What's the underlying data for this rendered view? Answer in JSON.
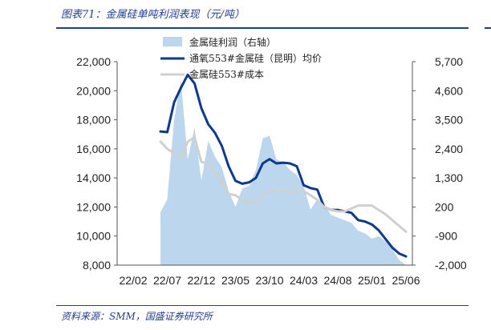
{
  "header": {
    "title": "图表71：金属硅单吨利润表现（元/吨）"
  },
  "footer": {
    "source": "资料来源：SMM，国盛证券研究所"
  },
  "chart_data": {
    "type": "line",
    "x_tick_labels": [
      "22/02",
      "22/07",
      "22/12",
      "23/05",
      "23/10",
      "24/03",
      "24/08",
      "25/01",
      "25/06"
    ],
    "y_left": {
      "ticks": [
        "22,000",
        "20,000",
        "18,000",
        "16,000",
        "14,000",
        "12,000",
        "10,000",
        "8,000"
      ],
      "range": [
        8000,
        22000
      ]
    },
    "y_right": {
      "ticks": [
        "5,700",
        "4,600",
        "3,500",
        "2,400",
        "1,300",
        "200",
        "-900",
        "-2,000"
      ],
      "range": [
        -2000,
        5700
      ]
    },
    "grid": false,
    "legend_position": "top-center",
    "series": [
      {
        "name": "金属硅利润（右轴）",
        "type": "area",
        "axis": "right",
        "color": "#bcd6ee",
        "points": [
          [
            "22/06",
            0
          ],
          [
            "22/07",
            500
          ],
          [
            "22/08",
            3500
          ],
          [
            "22/09",
            5000
          ],
          [
            "22/10",
            2000
          ],
          [
            "22/11",
            3200
          ],
          [
            "22/12",
            1200
          ],
          [
            "23/01",
            2700
          ],
          [
            "23/02",
            2100
          ],
          [
            "23/03",
            1700
          ],
          [
            "23/04",
            800
          ],
          [
            "23/05",
            200
          ],
          [
            "23/06",
            900
          ],
          [
            "23/07",
            1000
          ],
          [
            "23/08",
            1600
          ],
          [
            "23/09",
            2800
          ],
          [
            "23/10",
            2900
          ],
          [
            "23/11",
            2000
          ],
          [
            "23/12",
            1900
          ],
          [
            "24/01",
            1600
          ],
          [
            "24/02",
            1400
          ],
          [
            "24/03",
            1000
          ],
          [
            "24/04",
            100
          ],
          [
            "24/05",
            500
          ],
          [
            "24/06",
            300
          ],
          [
            "24/07",
            -100
          ],
          [
            "24/08",
            -200
          ],
          [
            "24/09",
            -300
          ],
          [
            "24/10",
            -400
          ],
          [
            "24/11",
            -700
          ],
          [
            "24/12",
            -800
          ],
          [
            "25/01",
            -1000
          ],
          [
            "25/02",
            -900
          ],
          [
            "25/03",
            -1100
          ],
          [
            "25/04",
            -1400
          ],
          [
            "25/05",
            -1800
          ],
          [
            "25/06",
            -2000
          ]
        ]
      },
      {
        "name": "通氧553#金属硅（昆明）均价",
        "type": "line",
        "axis": "left",
        "color": "#0d3a8c",
        "points": [
          [
            "22/06",
            17200
          ],
          [
            "22/07",
            17150
          ],
          [
            "22/08",
            19200
          ],
          [
            "22/09",
            20200
          ],
          [
            "22/10",
            21100
          ],
          [
            "22/11",
            20500
          ],
          [
            "22/12",
            18800
          ],
          [
            "23/01",
            17700
          ],
          [
            "23/02",
            17100
          ],
          [
            "23/03",
            16200
          ],
          [
            "23/04",
            14800
          ],
          [
            "23/05",
            13800
          ],
          [
            "23/06",
            13600
          ],
          [
            "23/07",
            13700
          ],
          [
            "23/08",
            14000
          ],
          [
            "23/09",
            15000
          ],
          [
            "23/10",
            15300
          ],
          [
            "23/11",
            15000
          ],
          [
            "23/12",
            15050
          ],
          [
            "24/01",
            15000
          ],
          [
            "24/02",
            14800
          ],
          [
            "24/03",
            13500
          ],
          [
            "24/04",
            13300
          ],
          [
            "24/05",
            13200
          ],
          [
            "24/06",
            12000
          ],
          [
            "24/07",
            11800
          ],
          [
            "24/08",
            11800
          ],
          [
            "24/09",
            11700
          ],
          [
            "24/10",
            11600
          ],
          [
            "24/11",
            11100
          ],
          [
            "24/12",
            11000
          ],
          [
            "25/01",
            10800
          ],
          [
            "25/02",
            10400
          ],
          [
            "25/03",
            9800
          ],
          [
            "25/04",
            9200
          ],
          [
            "25/05",
            8800
          ],
          [
            "25/06",
            8600
          ]
        ]
      },
      {
        "name": "金属硅553#成本",
        "type": "line",
        "axis": "left",
        "color": "#d0d0d0",
        "points": [
          [
            "22/06",
            16500
          ],
          [
            "22/07",
            16000
          ],
          [
            "22/08",
            15700
          ],
          [
            "22/09",
            15400
          ],
          [
            "22/10",
            16500
          ],
          [
            "22/11",
            16800
          ],
          [
            "22/12",
            15100
          ],
          [
            "23/01",
            15000
          ],
          [
            "23/02",
            14400
          ],
          [
            "23/03",
            13700
          ],
          [
            "23/04",
            12900
          ],
          [
            "23/05",
            12800
          ],
          [
            "23/06",
            12500
          ],
          [
            "23/07",
            12350
          ],
          [
            "23/08",
            12400
          ],
          [
            "23/09",
            12800
          ],
          [
            "23/10",
            13100
          ],
          [
            "23/11",
            13200
          ],
          [
            "23/12",
            13200
          ],
          [
            "24/01",
            13000
          ],
          [
            "24/02",
            13100
          ],
          [
            "24/03",
            13100
          ],
          [
            "24/04",
            12800
          ],
          [
            "24/05",
            12500
          ],
          [
            "24/06",
            12000
          ],
          [
            "24/07",
            11800
          ],
          [
            "24/08",
            11700
          ],
          [
            "24/09",
            11700
          ],
          [
            "24/10",
            11900
          ],
          [
            "24/11",
            12100
          ],
          [
            "24/12",
            12100
          ],
          [
            "25/01",
            12100
          ],
          [
            "25/02",
            11800
          ],
          [
            "25/03",
            11500
          ],
          [
            "25/04",
            11100
          ],
          [
            "25/05",
            10700
          ],
          [
            "25/06",
            10300
          ]
        ]
      }
    ]
  }
}
